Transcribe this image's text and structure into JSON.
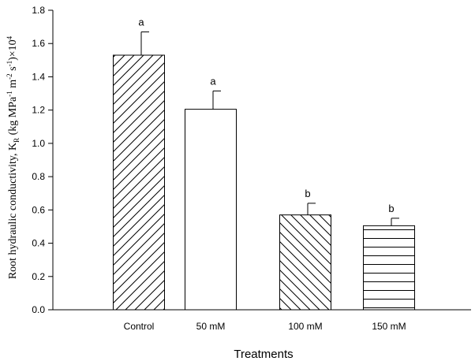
{
  "chart_data": {
    "type": "bar",
    "title": "",
    "xlabel": "Treatments",
    "ylabel": {
      "main": "Root hydraulic conductivity, K",
      "sub": "R",
      "unit_open": " (kg MPa",
      "exp1": "-1",
      "mid1": " m",
      "exp2": "-2",
      "mid2": " s",
      "exp3": "-1",
      "tail": ")×10",
      "exp4": "4"
    },
    "categories": [
      "Control",
      "50 mM",
      "100 mM",
      "150 mM"
    ],
    "values": [
      1.53,
      1.205,
      0.57,
      0.505
    ],
    "errors": [
      0.14,
      0.11,
      0.07,
      0.045
    ],
    "significance": [
      "a",
      "a",
      "b",
      "b"
    ],
    "patterns": [
      "diag-up",
      "none",
      "diag-down",
      "horizontal"
    ],
    "ylim": [
      0,
      1.8
    ],
    "yticks": [
      "0.0",
      "0.2",
      "0.4",
      "0.6",
      "0.8",
      "1.0",
      "1.2",
      "1.4",
      "1.6",
      "1.8"
    ],
    "grid": false,
    "legend": "none"
  }
}
